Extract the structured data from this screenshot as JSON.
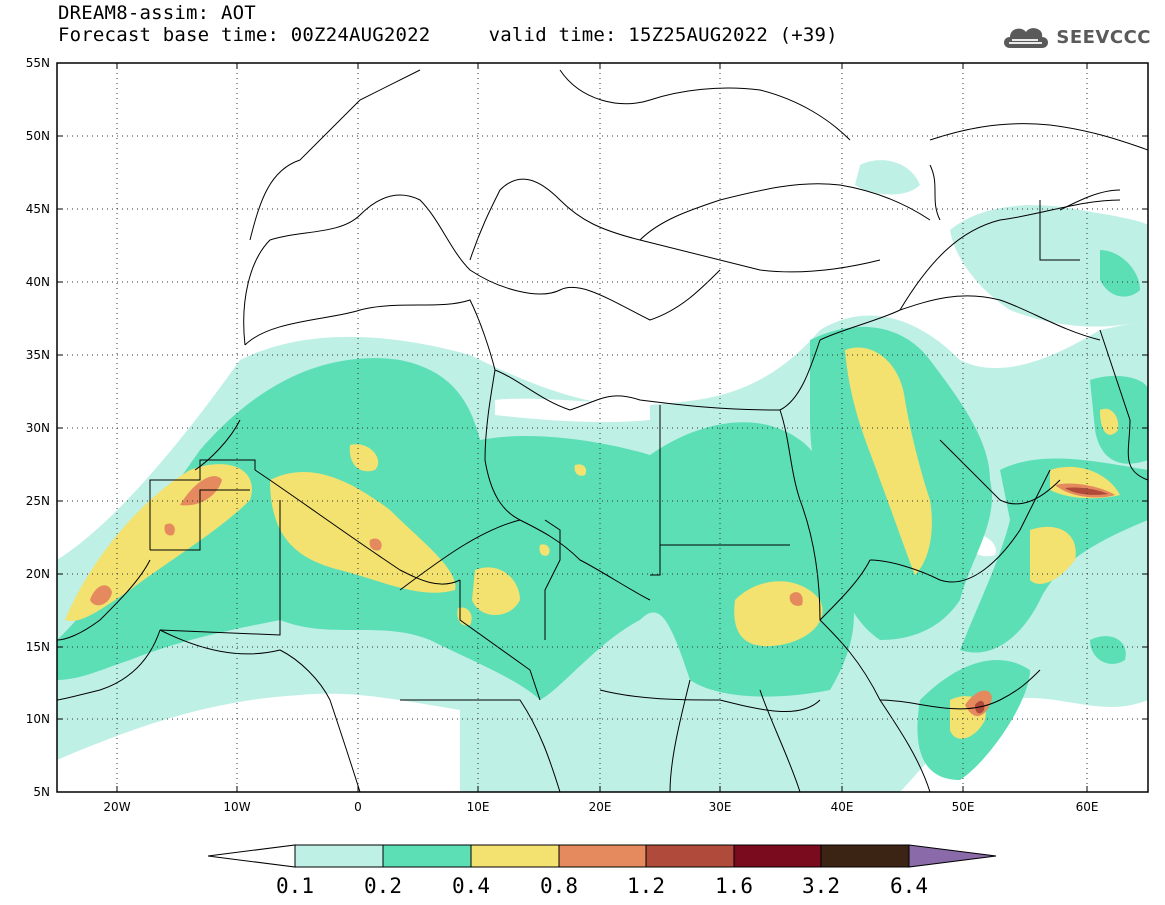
{
  "header": {
    "title_line1": "DREAM8-assim: AOT",
    "title_line2": "Forecast base time: 00Z24AUG2022     valid time: 15Z25AUG2022 (+39)"
  },
  "logo": {
    "text": "SEEVCCC",
    "icon": "cloud-icon"
  },
  "map": {
    "lat_labels": [
      "55N",
      "50N",
      "45N",
      "40N",
      "35N",
      "30N",
      "25N",
      "20N",
      "15N",
      "10N",
      "5N"
    ],
    "lon_labels": [
      "20W",
      "10W",
      "0",
      "10E",
      "20E",
      "30E",
      "40E",
      "50E",
      "60E"
    ],
    "lon_range": [
      -25,
      65
    ],
    "lat_range": [
      5,
      55
    ],
    "grid": "dotted",
    "colors": {
      "land_bg": "#ffffff",
      "c_0_1": "#bff0e6",
      "c_0_2": "#5ddfb6",
      "c_0_4": "#f3e26f",
      "c_0_8": "#e58a5e",
      "c_1_2": "#b04a3a",
      "border": "#000000"
    }
  },
  "colorbar": {
    "labels": [
      "0.1",
      "0.2",
      "0.4",
      "0.8",
      "1.2",
      "1.6",
      "3.2",
      "6.4"
    ],
    "colors": [
      "#ffffff",
      "#bff0e6",
      "#5ddfb6",
      "#f3e26f",
      "#e58a5e",
      "#b04a3a",
      "#7a0a1e",
      "#3b2414",
      "#8a6aa8"
    ]
  }
}
